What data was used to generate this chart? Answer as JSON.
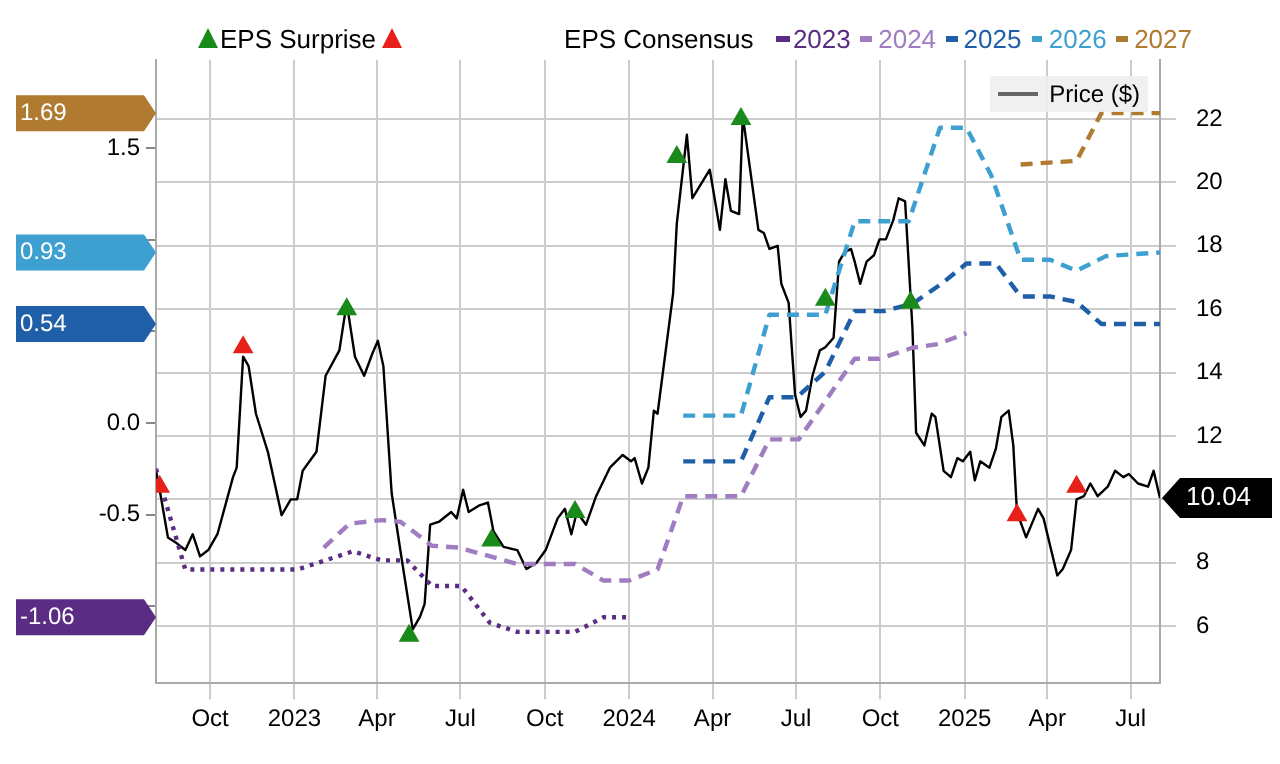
{
  "chart_data": {
    "type": "line",
    "legend": "top",
    "legend_title": "EPS Consensus",
    "grid": true,
    "xlim": [
      "2022-08-03",
      "2025-08-02"
    ],
    "xticks": [
      {
        "value": "2022-10-01",
        "label": "Oct"
      },
      {
        "value": "2023-01-01",
        "label": "2023"
      },
      {
        "value": "2023-04-01",
        "label": "Apr"
      },
      {
        "value": "2023-07-01",
        "label": "Jul"
      },
      {
        "value": "2023-10-01",
        "label": "Oct"
      },
      {
        "value": "2024-01-01",
        "label": "2024"
      },
      {
        "value": "2024-04-01",
        "label": "Apr"
      },
      {
        "value": "2024-07-01",
        "label": "Jul"
      },
      {
        "value": "2024-10-01",
        "label": "Oct"
      },
      {
        "value": "2025-01-01",
        "label": "2025"
      },
      {
        "value": "2025-04-01",
        "label": "Apr"
      },
      {
        "value": "2025-07-01",
        "label": "Jul"
      }
    ],
    "ylim": [
      -1.42,
      1.98
    ],
    "yticks": [
      {
        "value": 1.5,
        "label": "1.5"
      },
      {
        "value": 1,
        "label": null
      },
      {
        "value": 0.5,
        "label": null
      },
      {
        "value": 0,
        "label": "0.0"
      },
      {
        "value": -0.5,
        "label": "-0.5"
      },
      {
        "value": -1,
        "label": null
      }
    ],
    "y2lim": [
      4.2,
      23.86
    ],
    "y2ticks": [
      6,
      8,
      {
        "value": 10,
        "label": null
      },
      12,
      14,
      16,
      18,
      20,
      22
    ],
    "annotations": [
      "1.69",
      "0.93",
      "0.54",
      "-1.06"
    ],
    "series": [
      {
        "name": "EPS Surprise",
        "type": "scatter",
        "marker": "triangle",
        "axis": "y2",
        "color": "#1a8a1a",
        "x": [
          "2023-02-27",
          "2023-05-06",
          "2023-08-04",
          "2023-11-03",
          "2024-02-22",
          "2024-05-02",
          "2024-08-02",
          "2024-11-03"
        ],
        "values": [
          16.0,
          5.7,
          8.7,
          9.6,
          20.8,
          22.0,
          16.3,
          16.2
        ]
      },
      {
        "type": "scatter",
        "marker": "triangle",
        "axis": "y2",
        "color": "#e8201a",
        "x": [
          "2022-08-07",
          "2022-11-06",
          "2025-02-27",
          "2025-05-03"
        ],
        "values": [
          10.4,
          14.8,
          9.5,
          10.4
        ]
      },
      {
        "name": "2023",
        "line_style": "dotted",
        "axis": "y",
        "color": "#5b2c83",
        "x": [
          "2022-08-03",
          "2022-09-04",
          "2023-01-04",
          "2023-03-06",
          "2023-04-06",
          "2023-05-04",
          "2023-05-31",
          "2023-07-02",
          "2023-08-02",
          "2023-09-01",
          "2023-11-03",
          "2023-12-04",
          "2024-01-01"
        ],
        "values": [
          -0.25,
          -0.8,
          -0.8,
          -0.7,
          -0.75,
          -0.75,
          -0.89,
          -0.89,
          -1.09,
          -1.14,
          -1.14,
          -1.06,
          -1.06
        ]
      },
      {
        "name": "2024",
        "line_style": "dashed",
        "axis": "y",
        "color": "#a07cc0",
        "x": [
          "2023-02-02",
          "2023-03-02",
          "2023-04-06",
          "2023-04-27",
          "2023-05-31",
          "2023-06-29",
          "2023-09-01",
          "2023-11-03",
          "2023-12-04",
          "2024-01-01",
          "2024-02-01",
          "2024-02-29",
          "2024-05-02",
          "2024-06-02",
          "2024-07-04",
          "2024-09-03",
          "2024-09-30",
          "2024-11-05",
          "2024-12-03",
          "2025-01-03"
        ],
        "values": [
          -0.68,
          -0.55,
          -0.53,
          -0.54,
          -0.67,
          -0.68,
          -0.77,
          -0.77,
          -0.86,
          -0.86,
          -0.8,
          -0.4,
          -0.4,
          -0.09,
          -0.09,
          0.35,
          0.35,
          0.41,
          0.43,
          0.49
        ]
      },
      {
        "name": "2025",
        "line_style": "dashed",
        "axis": "y",
        "color": "#1f5fa8",
        "x": [
          "2024-02-29",
          "2024-05-02",
          "2024-06-02",
          "2024-07-02",
          "2024-08-02",
          "2024-09-03",
          "2024-10-05",
          "2024-11-05",
          "2024-12-07",
          "2025-01-03",
          "2025-02-04",
          "2025-03-03",
          "2025-04-04",
          "2025-05-03",
          "2025-05-30",
          "2025-08-02"
        ],
        "values": [
          -0.21,
          -0.21,
          0.14,
          0.14,
          0.28,
          0.61,
          0.61,
          0.65,
          0.76,
          0.87,
          0.87,
          0.69,
          0.69,
          0.66,
          0.54,
          0.54
        ]
      },
      {
        "name": "2026",
        "line_style": "dashed",
        "axis": "y",
        "color": "#3ea0d0",
        "x": [
          "2024-02-29",
          "2024-05-02",
          "2024-06-02",
          "2024-08-02",
          "2024-09-03",
          "2024-11-01",
          "2024-12-05",
          "2025-01-03",
          "2025-01-30",
          "2025-03-03",
          "2025-04-04",
          "2025-05-03",
          "2025-06-04",
          "2025-08-02"
        ],
        "values": [
          0.04,
          0.04,
          0.59,
          0.59,
          1.1,
          1.1,
          1.61,
          1.61,
          1.35,
          0.89,
          0.89,
          0.83,
          0.91,
          0.93
        ]
      },
      {
        "name": "2027",
        "line_style": "dashed",
        "axis": "y",
        "color": "#b07a30",
        "x": [
          "2025-03-03",
          "2025-05-03",
          "2025-05-30",
          "2025-08-02"
        ],
        "values": [
          1.41,
          1.43,
          1.69,
          1.69
        ]
      },
      {
        "name": "Price ($)",
        "line_style": "solid",
        "axis": "y2",
        "color": "#000000",
        "x": [
          "2022-08-03",
          "2022-08-07",
          "2022-08-16",
          "2022-08-24",
          "2022-09-04",
          "2022-09-12",
          "2022-09-20",
          "2022-09-29",
          "2022-10-09",
          "2022-10-26",
          "2022-10-30",
          "2022-11-06",
          "2022-11-12",
          "2022-11-20",
          "2022-12-03",
          "2022-12-18",
          "2022-12-28",
          "2023-01-04",
          "2023-01-10",
          "2023-01-25",
          "2023-02-04",
          "2023-02-19",
          "2023-02-27",
          "2023-03-08",
          "2023-03-18",
          "2023-03-27",
          "2023-04-02",
          "2023-04-08",
          "2023-04-17",
          "2023-04-27",
          "2023-05-10",
          "2023-05-18",
          "2023-05-23",
          "2023-05-29",
          "2023-06-08",
          "2023-06-21",
          "2023-06-27",
          "2023-07-04",
          "2023-07-10",
          "2023-07-21",
          "2023-07-31",
          "2023-08-06",
          "2023-08-17",
          "2023-09-01",
          "2023-09-11",
          "2023-09-22",
          "2023-10-02",
          "2023-10-15",
          "2023-10-23",
          "2023-10-30",
          "2023-11-05",
          "2023-11-15",
          "2023-11-26",
          "2023-12-11",
          "2023-12-25",
          "2024-01-03",
          "2024-01-07",
          "2024-01-15",
          "2024-01-22",
          "2024-01-28",
          "2024-02-01",
          "2024-02-18",
          "2024-02-22",
          "2024-03-04",
          "2024-03-10",
          "2024-03-29",
          "2024-04-09",
          "2024-04-15",
          "2024-04-21",
          "2024-04-30",
          "2024-05-04",
          "2024-05-21",
          "2024-05-27",
          "2024-06-02",
          "2024-06-11",
          "2024-06-15",
          "2024-06-23",
          "2024-06-30",
          "2024-07-06",
          "2024-07-12",
          "2024-07-19",
          "2024-07-27",
          "2024-08-02",
          "2024-08-11",
          "2024-08-17",
          "2024-08-23",
          "2024-08-30",
          "2024-09-03",
          "2024-09-09",
          "2024-09-16",
          "2024-09-24",
          "2024-09-30",
          "2024-10-07",
          "2024-10-15",
          "2024-10-21",
          "2024-10-28",
          "2024-11-05",
          "2024-11-09",
          "2024-11-18",
          "2024-11-26",
          "2024-11-30",
          "2024-12-09",
          "2024-12-17",
          "2024-12-24",
          "2024-12-30",
          "2025-01-07",
          "2025-01-12",
          "2025-01-18",
          "2025-01-28",
          "2025-02-04",
          "2025-02-10",
          "2025-02-18",
          "2025-02-23",
          "2025-02-27",
          "2025-03-09",
          "2025-03-22",
          "2025-03-28",
          "2025-04-12",
          "2025-04-18",
          "2025-04-27",
          "2025-05-03",
          "2025-05-11",
          "2025-05-18",
          "2025-05-26",
          "2025-06-06",
          "2025-06-14",
          "2025-06-23",
          "2025-06-29",
          "2025-07-09",
          "2025-07-20",
          "2025-07-26",
          "2025-08-02"
        ],
        "values": [
          10.9,
          10.3,
          8.8,
          8.65,
          8.4,
          8.9,
          8.2,
          8.4,
          8.9,
          10.7,
          11.0,
          14.5,
          14.2,
          12.7,
          11.5,
          9.5,
          10.0,
          10.0,
          10.9,
          11.5,
          13.9,
          14.7,
          16.2,
          14.5,
          13.9,
          14.6,
          15.0,
          14.2,
          10.2,
          8.3,
          5.9,
          6.3,
          6.7,
          9.2,
          9.3,
          9.6,
          9.4,
          10.3,
          9.6,
          9.8,
          9.9,
          9.0,
          8.5,
          8.4,
          7.8,
          8.0,
          8.4,
          9.4,
          9.7,
          8.9,
          9.6,
          9.2,
          10.1,
          11.0,
          11.4,
          11.2,
          11.3,
          10.5,
          11.0,
          12.8,
          12.7,
          16.5,
          18.7,
          21.5,
          19.5,
          20.4,
          18.5,
          20.1,
          19.1,
          19.0,
          22.1,
          18.5,
          18.4,
          17.9,
          18.0,
          16.8,
          16.2,
          13.3,
          12.6,
          12.8,
          13.9,
          14.7,
          14.8,
          15.1,
          17.5,
          17.8,
          17.9,
          17.5,
          16.8,
          17.5,
          17.7,
          18.2,
          18.2,
          18.8,
          19.5,
          19.4,
          15.4,
          12.1,
          11.7,
          12.7,
          12.6,
          10.9,
          10.7,
          11.3,
          11.2,
          11.5,
          10.6,
          11.2,
          11.0,
          11.6,
          12.6,
          12.8,
          11.7,
          9.6,
          8.8,
          9.7,
          9.4,
          7.6,
          7.8,
          8.4,
          10.0,
          10.1,
          10.5,
          10.1,
          10.4,
          10.9,
          10.7,
          10.8,
          10.5,
          10.4,
          10.9,
          10.04
        ],
        "value_labels": [
          null,
          null,
          null,
          null,
          null,
          null,
          null,
          null,
          null,
          null,
          null,
          null,
          null,
          null,
          null,
          null,
          null,
          null,
          null,
          null,
          null,
          null,
          null,
          null,
          null,
          null,
          null,
          null,
          null,
          null,
          null,
          null,
          null,
          null,
          null,
          null,
          null,
          null,
          null,
          null,
          null,
          null,
          null,
          null,
          null,
          null,
          null,
          null,
          null,
          null,
          null,
          null,
          null,
          null,
          null,
          null,
          null,
          null,
          null,
          null,
          null,
          null,
          null,
          null,
          null,
          null,
          null,
          null,
          null,
          null,
          null,
          null,
          null,
          null,
          null,
          null,
          null,
          null,
          null,
          null,
          null,
          null,
          null,
          null,
          null,
          null,
          null,
          null,
          null,
          null,
          null,
          null,
          null,
          null,
          null,
          null,
          null,
          null,
          null,
          null,
          null,
          null,
          null,
          null,
          null,
          null,
          null,
          null,
          null,
          null,
          null,
          null,
          null,
          null,
          null,
          null,
          null,
          null,
          null,
          null,
          null,
          null,
          null,
          null,
          null,
          null,
          null,
          null,
          null,
          null,
          null,
          "10.04"
        ]
      }
    ]
  }
}
